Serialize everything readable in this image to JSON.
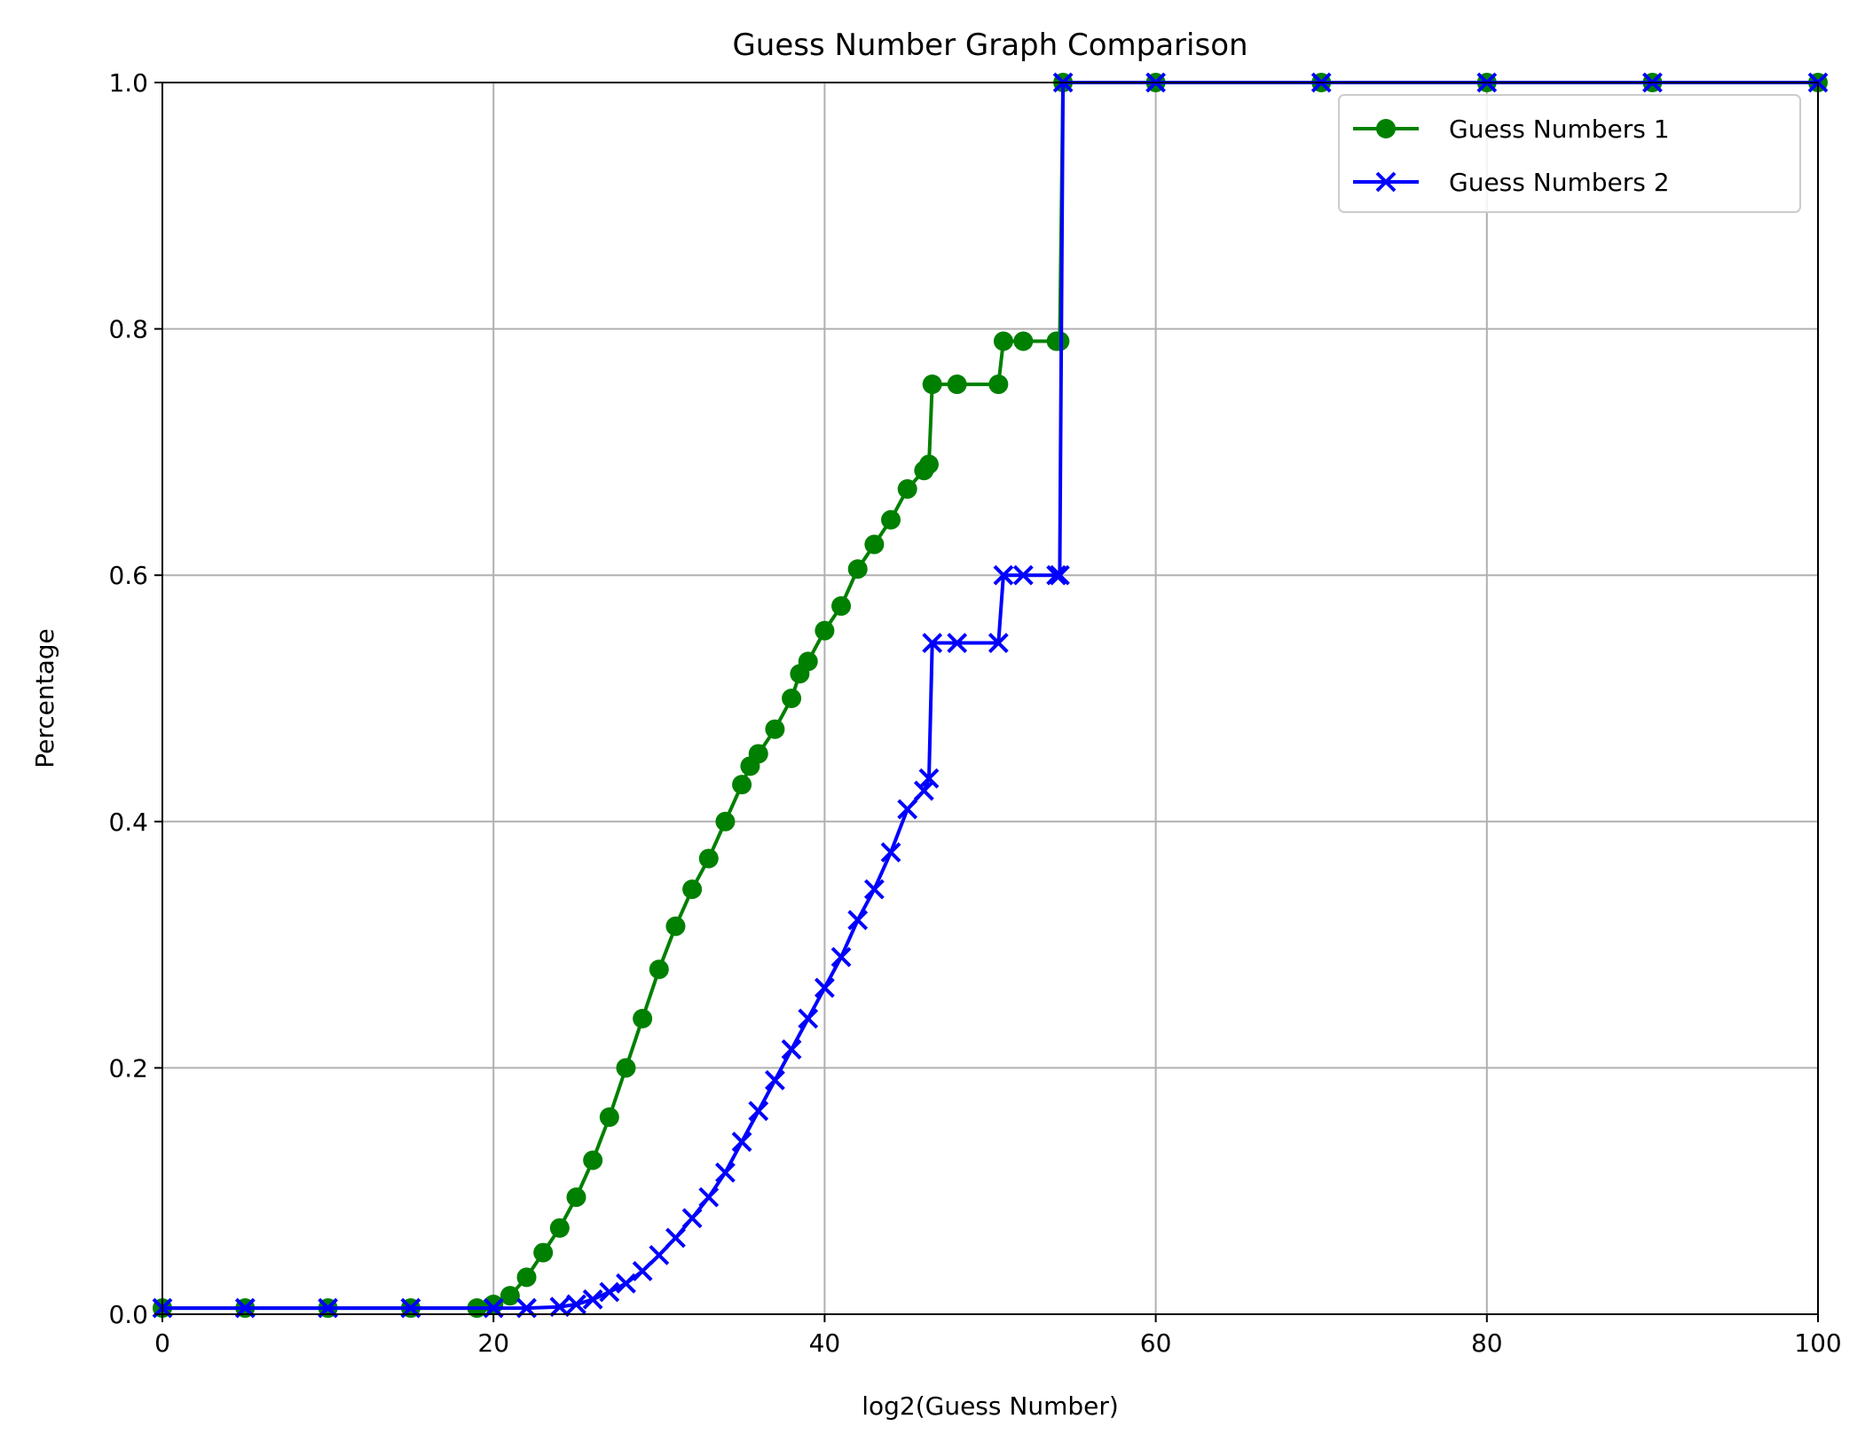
{
  "chart_data": {
    "type": "line",
    "title": "Guess Number Graph Comparison",
    "xlabel": "log2(Guess Number)",
    "ylabel": "Percentage",
    "xlim": [
      0,
      100
    ],
    "ylim": [
      0,
      1.0
    ],
    "xticks": [
      0,
      20,
      40,
      60,
      80,
      100
    ],
    "yticks": [
      0.0,
      0.2,
      0.4,
      0.6,
      0.8,
      1.0
    ],
    "xtick_labels": [
      "0",
      "20",
      "40",
      "60",
      "80",
      "100"
    ],
    "ytick_labels": [
      "0.0",
      "0.2",
      "0.4",
      "0.6",
      "0.8",
      "1.0"
    ],
    "grid": true,
    "legend_position": "top-right",
    "series": [
      {
        "name": "Guess Numbers 1",
        "color": "#008000",
        "marker": "circle",
        "x": [
          0,
          5,
          10,
          15,
          19,
          20,
          21,
          22,
          23,
          24,
          25,
          26,
          27,
          28,
          29,
          30,
          31,
          32,
          33,
          34,
          35,
          35.5,
          36,
          37,
          38,
          38.5,
          39,
          40,
          41,
          42,
          43,
          44,
          45,
          46,
          46.3,
          46.5,
          48,
          50.5,
          50.8,
          52,
          54,
          54.2,
          54.4,
          60,
          70,
          80,
          90,
          100
        ],
        "y": [
          0.005,
          0.005,
          0.005,
          0.005,
          0.005,
          0.008,
          0.015,
          0.03,
          0.05,
          0.07,
          0.095,
          0.125,
          0.16,
          0.2,
          0.24,
          0.28,
          0.315,
          0.345,
          0.37,
          0.4,
          0.43,
          0.445,
          0.455,
          0.475,
          0.5,
          0.52,
          0.53,
          0.555,
          0.575,
          0.605,
          0.625,
          0.645,
          0.67,
          0.685,
          0.69,
          0.755,
          0.755,
          0.755,
          0.79,
          0.79,
          0.79,
          0.79,
          1.0,
          1.0,
          1.0,
          1.0,
          1.0,
          1.0
        ]
      },
      {
        "name": "Guess Numbers 2",
        "color": "#0000ff",
        "marker": "x",
        "x": [
          0,
          5,
          10,
          15,
          20,
          22,
          24,
          25,
          26,
          27,
          28,
          29,
          30,
          31,
          32,
          33,
          34,
          35,
          36,
          37,
          38,
          39,
          40,
          41,
          42,
          43,
          44,
          45,
          46,
          46.3,
          46.5,
          48,
          50.5,
          50.8,
          52,
          54,
          54.2,
          54.4,
          60,
          70,
          80,
          90,
          100
        ],
        "y": [
          0.005,
          0.005,
          0.005,
          0.005,
          0.005,
          0.005,
          0.006,
          0.008,
          0.012,
          0.018,
          0.025,
          0.035,
          0.048,
          0.062,
          0.078,
          0.095,
          0.115,
          0.14,
          0.165,
          0.19,
          0.215,
          0.24,
          0.265,
          0.29,
          0.32,
          0.345,
          0.375,
          0.41,
          0.425,
          0.435,
          0.545,
          0.545,
          0.545,
          0.6,
          0.6,
          0.6,
          0.6,
          1.0,
          1.0,
          1.0,
          1.0,
          1.0,
          1.0
        ]
      }
    ]
  }
}
